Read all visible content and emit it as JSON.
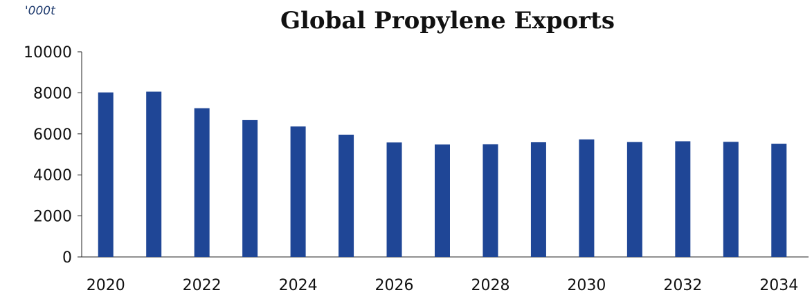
{
  "chart_data": {
    "type": "bar",
    "title": "Global Propylene Exports",
    "unit_label": "'000t",
    "xlabel": "",
    "ylabel": "",
    "categories": [
      "2020",
      "2021",
      "2022",
      "2023",
      "2024",
      "2025",
      "2026",
      "2027",
      "2028",
      "2029",
      "2030",
      "2031",
      "2032",
      "2033",
      "2034"
    ],
    "x_tick_labels": [
      "2020",
      "2022",
      "2024",
      "2026",
      "2028",
      "2030",
      "2032",
      "2034"
    ],
    "values": [
      8020,
      8060,
      7250,
      6670,
      6360,
      5960,
      5580,
      5480,
      5490,
      5590,
      5730,
      5600,
      5640,
      5610,
      5520
    ],
    "ylim": [
      0,
      10000
    ],
    "y_ticks": [
      0,
      2000,
      4000,
      6000,
      8000,
      10000
    ],
    "grid": false,
    "colors": {
      "bar": "#1f4696",
      "axis": "#222222"
    }
  }
}
